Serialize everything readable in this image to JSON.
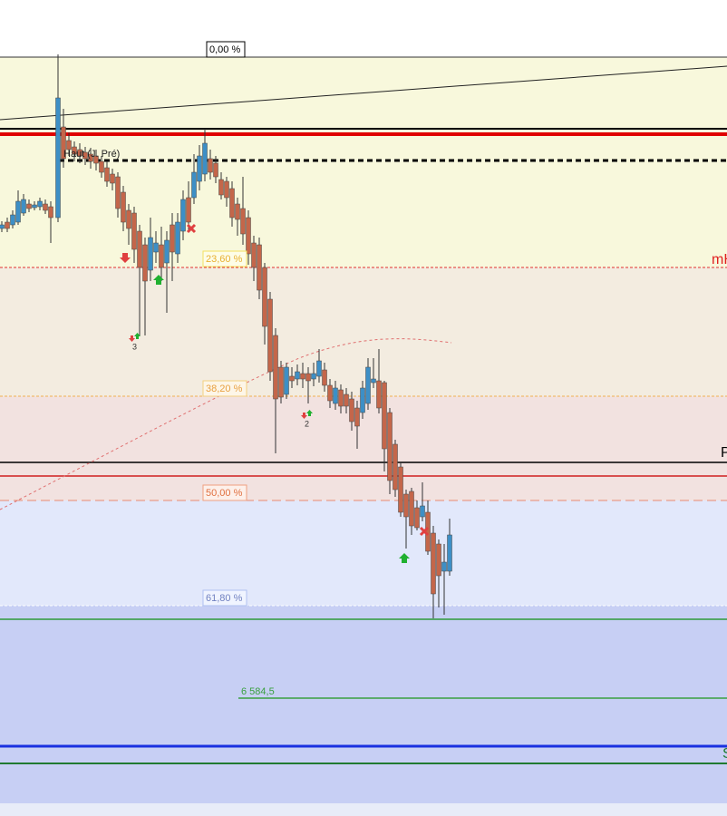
{
  "chart": {
    "fib_levels": [
      "0,00 %",
      "23,60 %",
      "38,20 %",
      "50,00 %",
      "61,80 %"
    ],
    "line_labels": {
      "prev_high": "Haut (J. Pré)",
      "mh": "mH",
      "pivot": "P",
      "support": "S",
      "price_level": "6 584,5"
    },
    "signal_counts": [
      "3",
      "2"
    ]
  }
}
